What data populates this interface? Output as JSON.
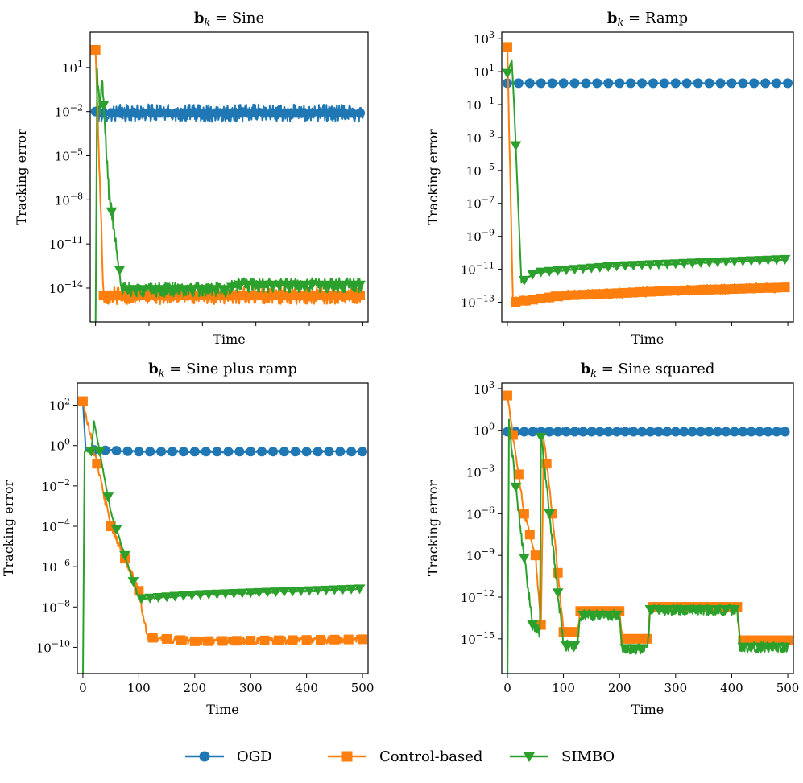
{
  "chart_data": [
    {
      "type": "line",
      "title_bold": "b",
      "title_sub": "k",
      "title_rest": " = Sine",
      "xlabel": "Time",
      "ylabel": "Tracking error",
      "xlim": [
        -10,
        510
      ],
      "yscale": "log",
      "ylim_exp": [
        -16.3,
        3.4
      ],
      "y_tick_exps": [
        1,
        -2,
        -5,
        -8,
        -11,
        -14
      ],
      "x_ticks": [
        0,
        100,
        200,
        300,
        400,
        500
      ],
      "x_tick_labels_visible": false,
      "series": [
        {
          "name": "OGD",
          "segments": [
            [
              0,
              -2.0
            ],
            [
              2,
              -2.1
            ],
            [
              500,
              -2.1
            ]
          ],
          "noise": 0.6,
          "marker_every": 15
        },
        {
          "name": "Control-based",
          "segments": [
            [
              0,
              2.2
            ],
            [
              15,
              -14.5
            ],
            [
              500,
              -14.5
            ]
          ],
          "noise": 0.6,
          "marker_every": 15
        },
        {
          "name": "SIMBO",
          "segments": [
            [
              0,
              -17
            ],
            [
              3,
              0.8
            ],
            [
              8,
              -2
            ],
            [
              12,
              0.2
            ],
            [
              25,
              -7.5
            ],
            [
              50,
              -14.1
            ],
            [
              250,
              -14.1
            ],
            [
              260,
              -13.8
            ],
            [
              500,
              -13.8
            ]
          ],
          "noise": 0.5,
          "marker_every": 15
        }
      ]
    },
    {
      "type": "line",
      "title_bold": "b",
      "title_sub": "k",
      "title_rest": " = Ramp",
      "xlabel": "Time",
      "ylabel": "Tracking error",
      "xlim": [
        -10,
        510
      ],
      "yscale": "log",
      "ylim_exp": [
        -14.2,
        3.4
      ],
      "y_tick_exps": [
        3,
        1,
        -1,
        -3,
        -5,
        -7,
        -9,
        -11,
        -13
      ],
      "x_ticks": [
        0,
        100,
        200,
        300,
        400,
        500
      ],
      "x_tick_labels_visible": false,
      "series": [
        {
          "name": "OGD",
          "segments": [
            [
              0,
              0.3
            ],
            [
              10,
              0.3
            ],
            [
              500,
              0.3
            ]
          ],
          "noise": 0.0,
          "marker_every": 20
        },
        {
          "name": "Control-based",
          "segments": [
            [
              0,
              2.5
            ],
            [
              10,
              -13.0
            ],
            [
              100,
              -12.6
            ],
            [
              300,
              -12.3
            ],
            [
              500,
              -12.1
            ]
          ],
          "noise": 0.3,
          "marker_every": 15
        },
        {
          "name": "SIMBO",
          "segments": [
            [
              0,
              0.9
            ],
            [
              8,
              1.7
            ],
            [
              12,
              -1.0
            ],
            [
              25,
              -11.8
            ],
            [
              50,
              -11.2
            ],
            [
              200,
              -10.8
            ],
            [
              500,
              -10.4
            ]
          ],
          "noise": 0.05,
          "marker_every": 15
        }
      ]
    },
    {
      "type": "line",
      "title_bold": "b",
      "title_sub": "k",
      "title_rest": " = Sine plus ramp",
      "xlabel": "Time",
      "ylabel": "Tracking error",
      "xlim": [
        -10,
        510
      ],
      "yscale": "log",
      "ylim_exp": [
        -11.3,
        3.1
      ],
      "y_tick_exps": [
        2,
        0,
        -2,
        -4,
        -6,
        -8,
        -10
      ],
      "x_ticks": [
        0,
        100,
        200,
        300,
        400,
        500
      ],
      "x_tick_labels_visible": true,
      "series": [
        {
          "name": "OGD",
          "segments": [
            [
              0,
              2.2
            ],
            [
              5,
              -0.2
            ],
            [
              100,
              -0.3
            ],
            [
              500,
              -0.3
            ]
          ],
          "noise": 0.05,
          "marker_every": 20
        },
        {
          "name": "Control-based",
          "segments": [
            [
              0,
              2.2
            ],
            [
              50,
              -4.0
            ],
            [
              100,
              -7.2
            ],
            [
              115,
              -9.5
            ],
            [
              200,
              -9.7
            ],
            [
              500,
              -9.6
            ]
          ],
          "noise": 0.2,
          "marker_every": 25
        },
        {
          "name": "SIMBO",
          "segments": [
            [
              0,
              -12
            ],
            [
              3,
              -0.3
            ],
            [
              15,
              -0.3
            ],
            [
              20,
              1.2
            ],
            [
              50,
              -3.3
            ],
            [
              100,
              -7.6
            ],
            [
              200,
              -7.4
            ],
            [
              500,
              -7.1
            ]
          ],
          "noise": 0.05,
          "marker_every": 15
        }
      ]
    },
    {
      "type": "line",
      "title_bold": "b",
      "title_sub": "k",
      "title_rest": " = Sine squared",
      "xlabel": "Time",
      "ylabel": "Tracking error",
      "xlim": [
        -10,
        510
      ],
      "yscale": "log",
      "ylim_exp": [
        -17.5,
        3.4
      ],
      "y_tick_exps": [
        3,
        0,
        -3,
        -6,
        -9,
        -12,
        -15
      ],
      "x_ticks": [
        0,
        100,
        200,
        300,
        400,
        500
      ],
      "x_tick_labels_visible": true,
      "series": [
        {
          "name": "OGD",
          "segments": [
            [
              0,
              -0.1
            ],
            [
              500,
              -0.1
            ]
          ],
          "noise": 0.25,
          "marker_every": 15
        },
        {
          "name": "Control-based",
          "segments": [
            [
              0,
              2.5
            ],
            [
              30,
              -6.0
            ],
            [
              50,
              -9.0
            ],
            [
              60,
              -14.0
            ],
            [
              65,
              -0.6
            ],
            [
              80,
              -6.0
            ],
            [
              100,
              -14.5
            ],
            [
              125,
              -14.5
            ],
            [
              130,
              -13.0
            ],
            [
              200,
              -13.0
            ],
            [
              205,
              -15.0
            ],
            [
              250,
              -15.0
            ],
            [
              255,
              -12.7
            ],
            [
              410,
              -12.7
            ],
            [
              415,
              -15.1
            ],
            [
              500,
              -15.1
            ]
          ],
          "noise": 0.2,
          "marker_every": 10
        },
        {
          "name": "SIMBO",
          "segments": [
            [
              0,
              -19
            ],
            [
              3,
              0.5
            ],
            [
              20,
              -6.0
            ],
            [
              45,
              -14.0
            ],
            [
              58,
              -14.5
            ],
            [
              60,
              -0.5
            ],
            [
              75,
              -6.0
            ],
            [
              100,
              -15.5
            ],
            [
              125,
              -15.5
            ],
            [
              130,
              -13.3
            ],
            [
              200,
              -13.3
            ],
            [
              205,
              -15.7
            ],
            [
              250,
              -15.7
            ],
            [
              255,
              -12.9
            ],
            [
              410,
              -12.9
            ],
            [
              415,
              -15.6
            ],
            [
              500,
              -15.6
            ]
          ],
          "noise": 0.4,
          "marker_every": 15
        }
      ]
    }
  ],
  "legend": {
    "items": [
      {
        "name": "OGD",
        "marker": "circle",
        "color": "#1f77b4"
      },
      {
        "name": "Control-based",
        "marker": "square",
        "color": "#ff7f0e"
      },
      {
        "name": "SIMBO",
        "marker": "triangle-down",
        "color": "#2ca02c"
      }
    ]
  },
  "colors": {
    "OGD": "#1f77b4",
    "Control-based": "#ff7f0e",
    "SIMBO": "#2ca02c"
  }
}
